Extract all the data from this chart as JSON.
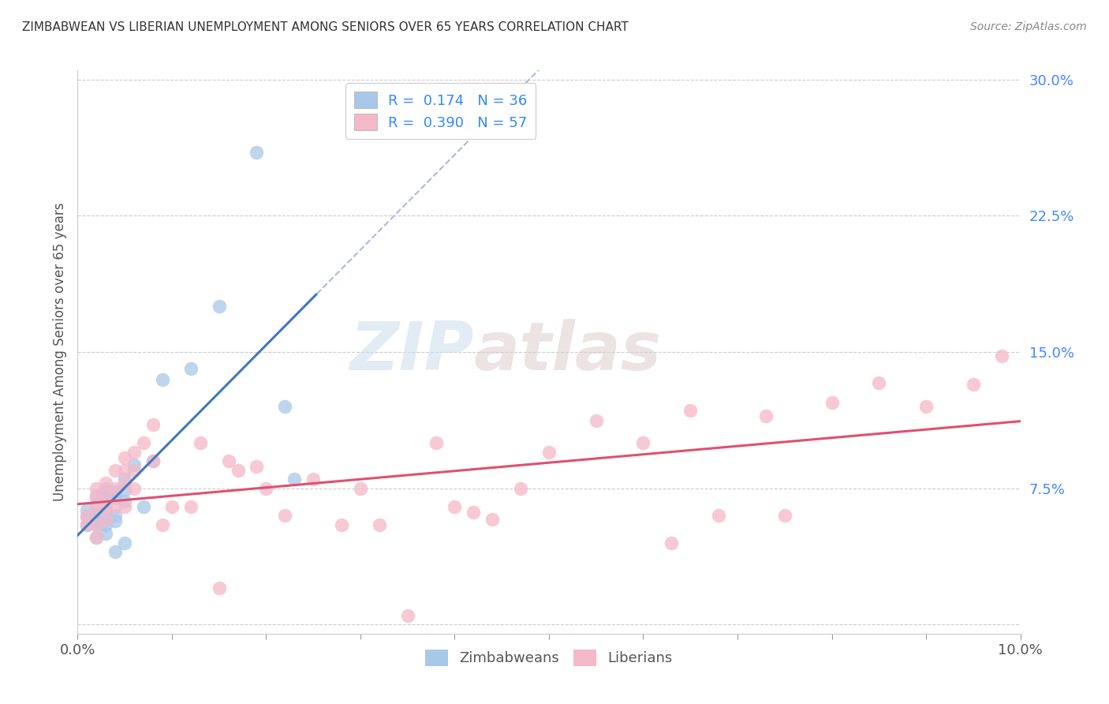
{
  "title": "ZIMBABWEAN VS LIBERIAN UNEMPLOYMENT AMONG SENIORS OVER 65 YEARS CORRELATION CHART",
  "source": "Source: ZipAtlas.com",
  "ylabel": "Unemployment Among Seniors over 65 years",
  "xlim": [
    0.0,
    0.1
  ],
  "ylim": [
    -0.005,
    0.305
  ],
  "xticks": [
    0.0,
    0.01,
    0.02,
    0.03,
    0.04,
    0.05,
    0.06,
    0.07,
    0.08,
    0.09,
    0.1
  ],
  "yticks": [
    0.0,
    0.075,
    0.15,
    0.225,
    0.3
  ],
  "xtick_labels_show": [
    "0.0%",
    "",
    "",
    "",
    "",
    "",
    "",
    "",
    "",
    "",
    "10.0%"
  ],
  "ytick_labels_show": [
    "",
    "7.5%",
    "15.0%",
    "22.5%",
    "30.0%"
  ],
  "zimbabwean_R": 0.174,
  "zimbabwean_N": 36,
  "liberian_R": 0.39,
  "liberian_N": 57,
  "zimbabwean_color": "#a8c8e8",
  "liberian_color": "#f5b8c8",
  "zimbabwean_line_color": "#4477bb",
  "liberian_line_color": "#e05070",
  "dashed_line_color": "#aabbdd",
  "tick_color": "#4488ff",
  "legend_text_color": "#3388ff",
  "watermark_zip": "ZIP",
  "watermark_atlas": "atlas",
  "zimbabwean_x": [
    0.001,
    0.001,
    0.001,
    0.002,
    0.002,
    0.002,
    0.002,
    0.002,
    0.002,
    0.002,
    0.003,
    0.003,
    0.003,
    0.003,
    0.003,
    0.003,
    0.003,
    0.003,
    0.004,
    0.004,
    0.004,
    0.004,
    0.004,
    0.005,
    0.005,
    0.005,
    0.005,
    0.006,
    0.007,
    0.008,
    0.009,
    0.012,
    0.015,
    0.019,
    0.022,
    0.023
  ],
  "zimbabwean_y": [
    0.063,
    0.059,
    0.055,
    0.071,
    0.066,
    0.06,
    0.058,
    0.057,
    0.055,
    0.048,
    0.075,
    0.073,
    0.072,
    0.068,
    0.062,
    0.058,
    0.055,
    0.05,
    0.073,
    0.07,
    0.06,
    0.057,
    0.04,
    0.08,
    0.074,
    0.068,
    0.045,
    0.088,
    0.065,
    0.09,
    0.135,
    0.141,
    0.175,
    0.26,
    0.12,
    0.08
  ],
  "liberian_x": [
    0.001,
    0.001,
    0.002,
    0.002,
    0.002,
    0.002,
    0.002,
    0.003,
    0.003,
    0.003,
    0.003,
    0.004,
    0.004,
    0.004,
    0.005,
    0.005,
    0.005,
    0.005,
    0.006,
    0.006,
    0.006,
    0.007,
    0.008,
    0.008,
    0.009,
    0.01,
    0.012,
    0.013,
    0.015,
    0.016,
    0.017,
    0.019,
    0.02,
    0.022,
    0.025,
    0.028,
    0.03,
    0.032,
    0.035,
    0.038,
    0.04,
    0.042,
    0.044,
    0.047,
    0.05,
    0.055,
    0.06,
    0.063,
    0.065,
    0.068,
    0.073,
    0.075,
    0.08,
    0.085,
    0.09,
    0.095,
    0.098
  ],
  "liberian_y": [
    0.06,
    0.055,
    0.075,
    0.07,
    0.065,
    0.055,
    0.048,
    0.078,
    0.072,
    0.065,
    0.058,
    0.085,
    0.075,
    0.065,
    0.092,
    0.085,
    0.078,
    0.065,
    0.095,
    0.085,
    0.075,
    0.1,
    0.11,
    0.09,
    0.055,
    0.065,
    0.065,
    0.1,
    0.02,
    0.09,
    0.085,
    0.087,
    0.075,
    0.06,
    0.08,
    0.055,
    0.075,
    0.055,
    0.005,
    0.1,
    0.065,
    0.062,
    0.058,
    0.075,
    0.095,
    0.112,
    0.1,
    0.045,
    0.118,
    0.06,
    0.115,
    0.06,
    0.122,
    0.133,
    0.12,
    0.132,
    0.148
  ]
}
